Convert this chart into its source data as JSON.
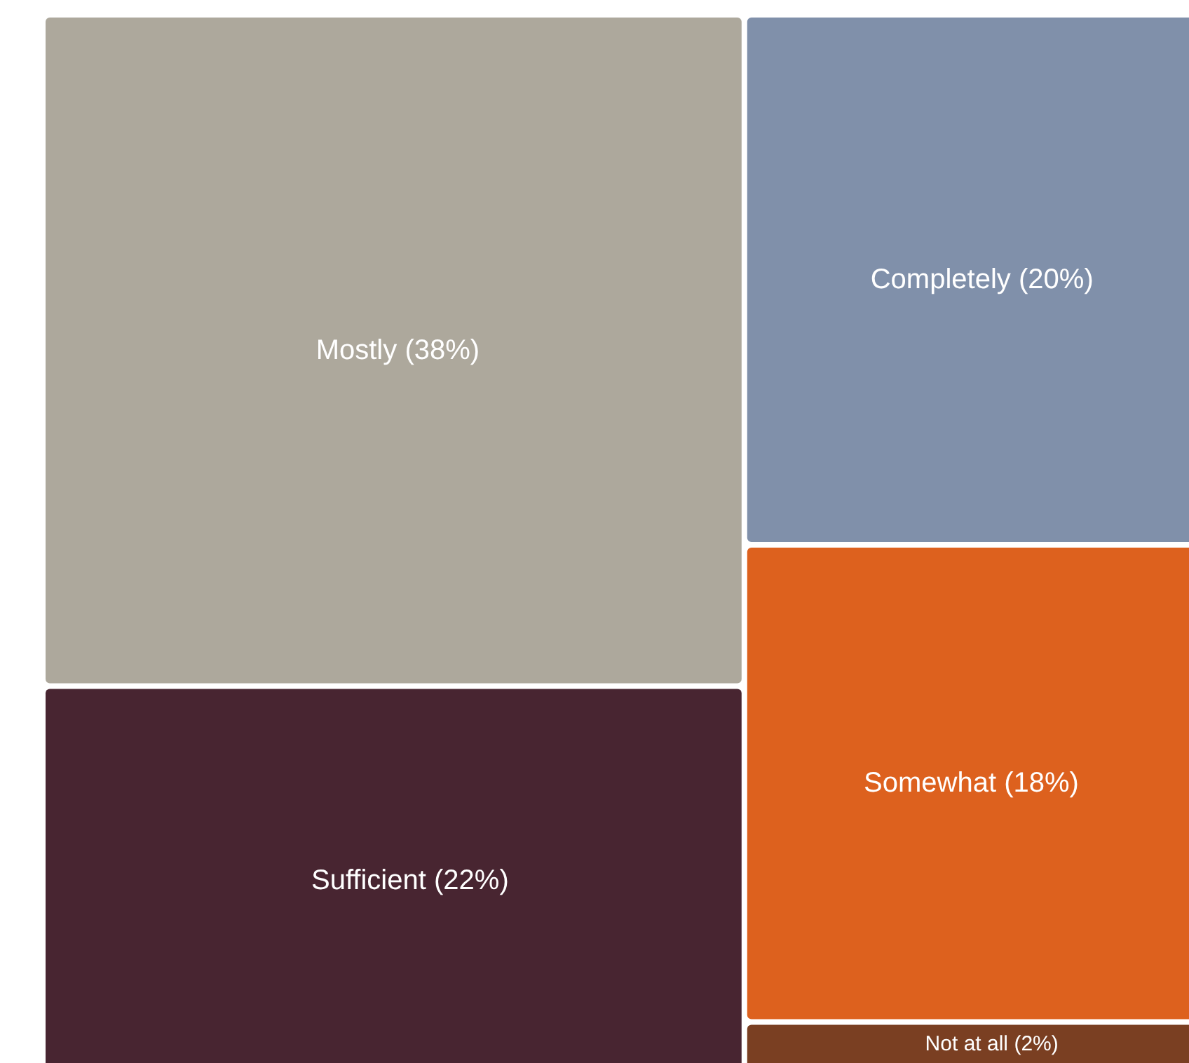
{
  "chart_data": {
    "type": "other",
    "categories": [
      "Mostly",
      "Sufficient",
      "Completely",
      "Somewhat",
      "Not at all"
    ],
    "values": [
      38,
      22,
      20,
      18,
      2
    ],
    "value_labels": [
      "(38%)",
      "(22%)",
      "(20%)",
      "(18%)",
      "(2%)"
    ],
    "colors": [
      "#ada89c",
      "#482531",
      "#8090aa",
      "#dd611e",
      "#7a3f22"
    ]
  }
}
